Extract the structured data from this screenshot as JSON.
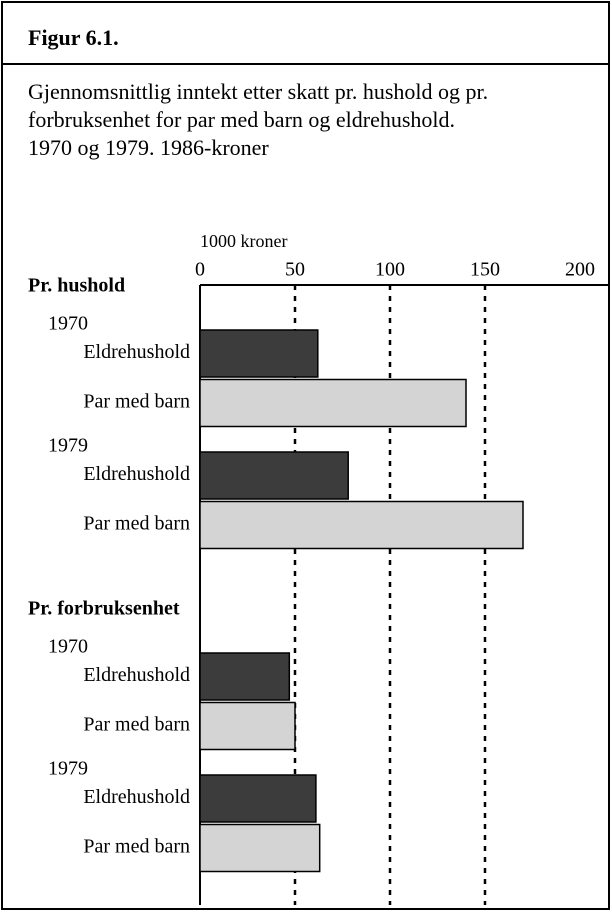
{
  "chart_data": {
    "type": "bar",
    "orientation": "horizontal",
    "title": "Figur 6.1.",
    "subtitle": [
      "Gjennomsnittlig inntekt etter skatt pr. hushold og pr.",
      "forbruksenhet for par med barn og eldrehushold.",
      "1970 og 1979. 1986-kroner"
    ],
    "x_label": "1000 kroner",
    "groups": [
      {
        "label": "Pr. hushold",
        "years": [
          "1970",
          "1979"
        ]
      },
      {
        "label": "Pr. forbruksenhet",
        "years": [
          "1970",
          "1979"
        ]
      }
    ],
    "series": [
      {
        "name": "Eldrehushold",
        "color": "#3c3c3c",
        "values": [
          62,
          78,
          47,
          61
        ]
      },
      {
        "name": "Par med barn",
        "color": "#d4d4d4",
        "values": [
          140,
          170,
          50,
          63
        ]
      }
    ],
    "xlim": [
      0,
      200
    ],
    "xticks": [
      0,
      50,
      100,
      150,
      200
    ],
    "grid": true
  }
}
